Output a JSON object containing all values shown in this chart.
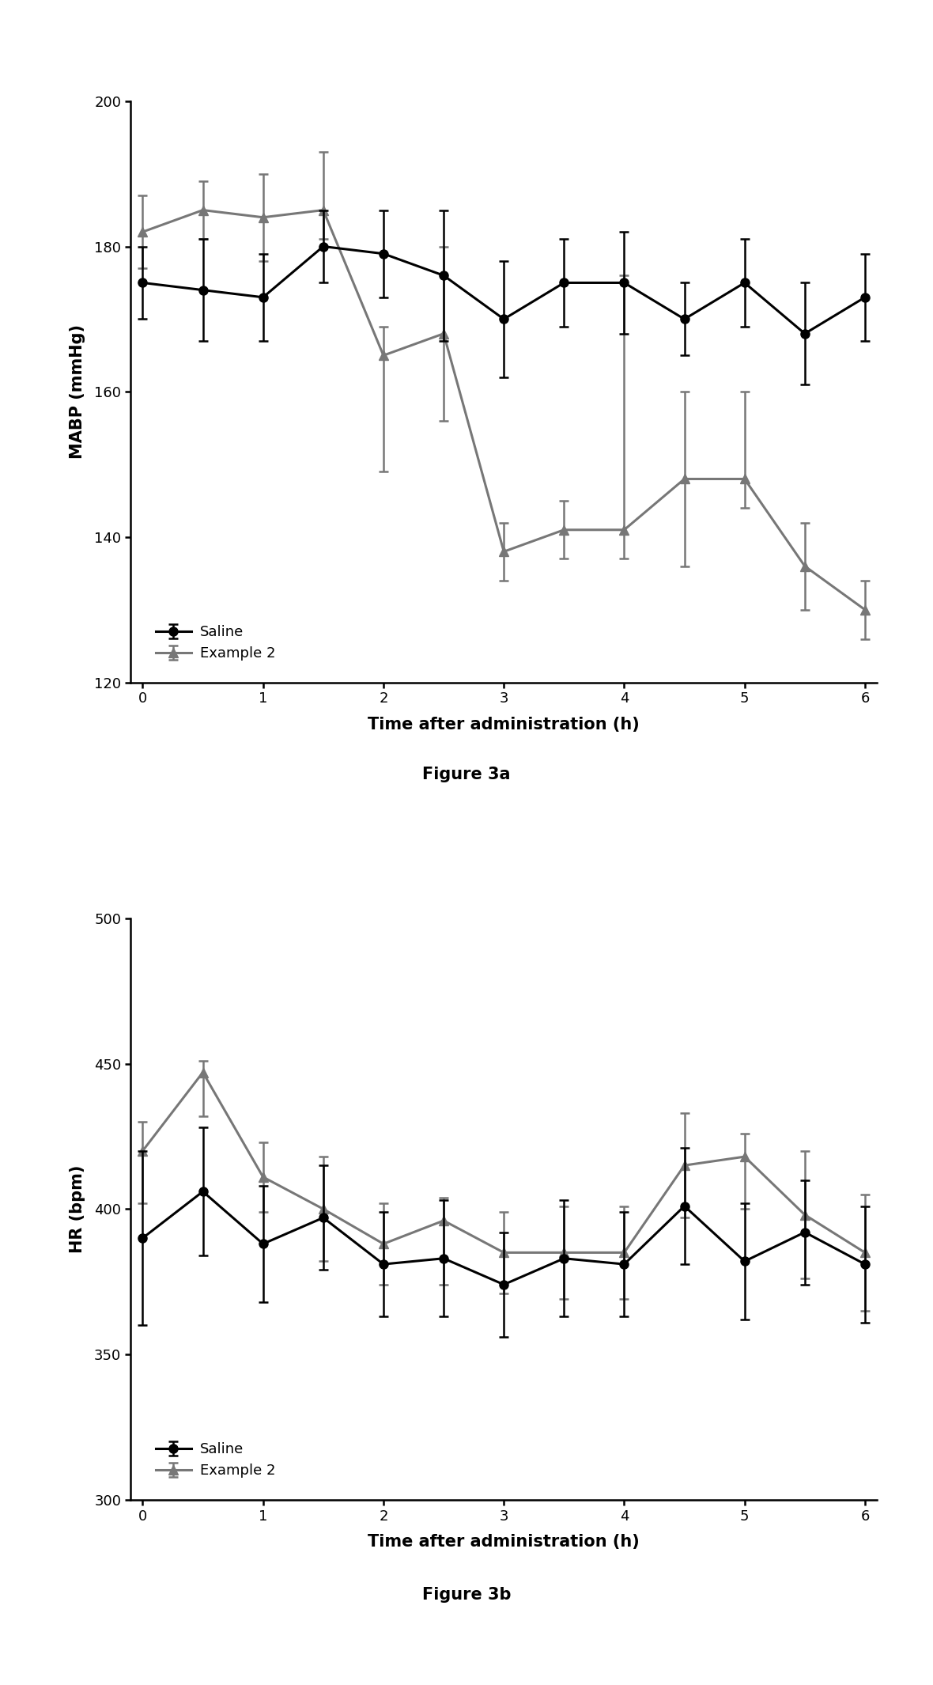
{
  "fig3a": {
    "caption": "Figure 3a",
    "ylabel": "MABP (mmHg)",
    "xlabel": "Time after administration (h)",
    "ylim": [
      120,
      200
    ],
    "xlim": [
      -0.1,
      6.1
    ],
    "yticks": [
      120,
      140,
      160,
      180,
      200
    ],
    "xticks": [
      0,
      1,
      2,
      3,
      4,
      5,
      6
    ],
    "saline": {
      "x": [
        0,
        0.5,
        1,
        1.5,
        2,
        2.5,
        3,
        3.5,
        4,
        4.5,
        5,
        5.5,
        6
      ],
      "y": [
        175,
        174,
        173,
        180,
        179,
        176,
        170,
        175,
        175,
        170,
        175,
        168,
        173
      ],
      "yerr_lo": [
        5,
        7,
        6,
        5,
        6,
        9,
        8,
        6,
        7,
        5,
        6,
        7,
        6
      ],
      "yerr_hi": [
        5,
        7,
        6,
        5,
        6,
        9,
        8,
        6,
        7,
        5,
        6,
        7,
        6
      ],
      "color": "#000000",
      "label": "Saline",
      "marker": "o",
      "linewidth": 2.5
    },
    "example2": {
      "x": [
        0,
        0.5,
        1,
        1.5,
        2,
        2.5,
        3,
        3.5,
        4,
        4.5,
        5,
        5.5,
        6
      ],
      "y": [
        182,
        185,
        184,
        185,
        165,
        168,
        138,
        141,
        141,
        148,
        148,
        136,
        130
      ],
      "yerr_lo": [
        5,
        4,
        6,
        4,
        16,
        12,
        4,
        4,
        4,
        12,
        4,
        6,
        4
      ],
      "yerr_hi": [
        5,
        4,
        6,
        8,
        4,
        12,
        4,
        4,
        35,
        12,
        12,
        6,
        4
      ],
      "color": "#777777",
      "label": "Example 2",
      "marker": "^",
      "linewidth": 2.5
    }
  },
  "fig3b": {
    "caption": "Figure 3b",
    "ylabel": "HR (bpm)",
    "xlabel": "Time after administration (h)",
    "ylim": [
      300,
      500
    ],
    "xlim": [
      -0.1,
      6.1
    ],
    "yticks": [
      300,
      350,
      400,
      450,
      500
    ],
    "xticks": [
      0,
      1,
      2,
      3,
      4,
      5,
      6
    ],
    "saline": {
      "x": [
        0,
        0.5,
        1,
        1.5,
        2,
        2.5,
        3,
        3.5,
        4,
        4.5,
        5,
        5.5,
        6
      ],
      "y": [
        390,
        406,
        388,
        397,
        381,
        383,
        374,
        383,
        381,
        401,
        382,
        392,
        381
      ],
      "yerr_lo": [
        30,
        22,
        20,
        18,
        18,
        20,
        18,
        20,
        18,
        20,
        20,
        18,
        20
      ],
      "yerr_hi": [
        30,
        22,
        20,
        18,
        18,
        20,
        18,
        20,
        18,
        20,
        20,
        18,
        20
      ],
      "color": "#000000",
      "label": "Saline",
      "marker": "o",
      "linewidth": 2.5
    },
    "example2": {
      "x": [
        0,
        0.5,
        1,
        1.5,
        2,
        2.5,
        3,
        3.5,
        4,
        4.5,
        5,
        5.5,
        6
      ],
      "y": [
        420,
        447,
        411,
        400,
        388,
        396,
        385,
        385,
        385,
        415,
        418,
        398,
        385
      ],
      "yerr_lo": [
        18,
        15,
        12,
        18,
        14,
        22,
        14,
        16,
        16,
        18,
        18,
        22,
        20
      ],
      "yerr_hi": [
        10,
        4,
        12,
        18,
        14,
        8,
        14,
        16,
        16,
        18,
        8,
        22,
        20
      ],
      "color": "#777777",
      "label": "Example 2",
      "marker": "^",
      "linewidth": 2.5
    }
  },
  "background_color": "#ffffff",
  "axis_fontsize": 15,
  "tick_fontsize": 13,
  "legend_fontsize": 13,
  "caption_fontsize": 15,
  "marker_size": 8,
  "capsize": 4,
  "capthick": 1.8,
  "linewidth": 2.2,
  "elinewidth": 1.8
}
